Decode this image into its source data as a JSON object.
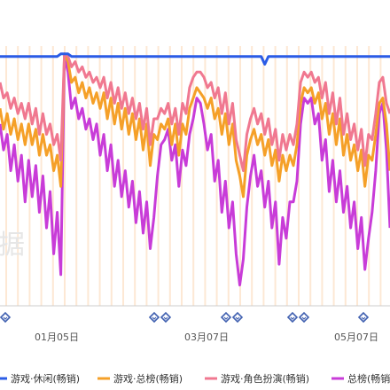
{
  "chart_data": {
    "type": "line",
    "title": "",
    "xlabel": "",
    "ylabel": "",
    "watermark": "据",
    "x_ticks": [
      "01月05日",
      "03月07日",
      "05月07日"
    ],
    "ylim": [
      0,
      100
    ],
    "grid": false,
    "legend_position": "bottom",
    "colors": {
      "casual": "#2b5ce6",
      "total": "#f5a028",
      "rpg": "#f07890",
      "overall": "#c83cd8",
      "event_band": "#fde8d4",
      "marker": "#4060b0"
    },
    "series": [
      {
        "name": "游戏·休闲(畅销)",
        "color": "#2b5ce6",
        "values": [
          96,
          96,
          96,
          96,
          96,
          96,
          96,
          96,
          96,
          96,
          96,
          96,
          96,
          96,
          96,
          96,
          96,
          97,
          97,
          97,
          96,
          96,
          96,
          96,
          96,
          96,
          96,
          96,
          96,
          96,
          96,
          96,
          96,
          96,
          96,
          96,
          96,
          96,
          96,
          96,
          96,
          96,
          96,
          96,
          96,
          96,
          96,
          96,
          96,
          96,
          96,
          96,
          96,
          96,
          96,
          96,
          96,
          96,
          96,
          96,
          96,
          96,
          96,
          96,
          96,
          96,
          96,
          96,
          96,
          96,
          96,
          96,
          96,
          96,
          93,
          96,
          96,
          96,
          96,
          96,
          96,
          96,
          96,
          96,
          96,
          96,
          96,
          96,
          96,
          96,
          96,
          96,
          96,
          96,
          96,
          96,
          96,
          96,
          96,
          96,
          96,
          96,
          96,
          96,
          96,
          96,
          96,
          96,
          96,
          96
        ]
      },
      {
        "name": "游戏·总榜(畅销)",
        "color": "#f5a028",
        "values": [
          76,
          68,
          74,
          66,
          72,
          64,
          70,
          62,
          70,
          62,
          68,
          58,
          66,
          58,
          62,
          52,
          58,
          46,
          97,
          94,
          86,
          88,
          82,
          86,
          80,
          84,
          78,
          82,
          76,
          82,
          72,
          80,
          70,
          78,
          68,
          76,
          66,
          74,
          64,
          72,
          60,
          70,
          54,
          66,
          64,
          70,
          68,
          72,
          62,
          70,
          58,
          70,
          66,
          76,
          80,
          84,
          82,
          80,
          76,
          80,
          72,
          76,
          66,
          74,
          62,
          70,
          56,
          50,
          42,
          58,
          64,
          68,
          62,
          66,
          58,
          64,
          54,
          60,
          48,
          58,
          52,
          58,
          54,
          62,
          78,
          84,
          82,
          84,
          78,
          82,
          72,
          78,
          66,
          74,
          62,
          72,
          58,
          66,
          56,
          62,
          52,
          60,
          46,
          58,
          56,
          66,
          78,
          80,
          70,
          52
        ]
      },
      {
        "name": "游戏·角色扮演(畅销)",
        "color": "#f07890",
        "values": [
          86,
          80,
          82,
          76,
          80,
          74,
          78,
          72,
          78,
          70,
          76,
          66,
          74,
          66,
          70,
          62,
          66,
          56,
          97,
          96,
          92,
          94,
          90,
          92,
          88,
          90,
          86,
          88,
          84,
          88,
          80,
          86,
          78,
          84,
          76,
          82,
          74,
          80,
          72,
          78,
          68,
          76,
          62,
          72,
          72,
          76,
          74,
          78,
          70,
          76,
          66,
          78,
          74,
          84,
          88,
          90,
          90,
          88,
          84,
          86,
          80,
          84,
          74,
          82,
          70,
          78,
          64,
          58,
          52,
          66,
          72,
          76,
          70,
          74,
          66,
          72,
          62,
          68,
          56,
          66,
          60,
          66,
          62,
          70,
          86,
          90,
          88,
          90,
          86,
          88,
          80,
          86,
          74,
          82,
          70,
          80,
          66,
          74,
          64,
          70,
          60,
          68,
          54,
          66,
          64,
          74,
          86,
          88,
          78,
          74
        ]
      },
      {
        "name": "总榜(畅销)",
        "color": "#c83cd8",
        "values": [
          70,
          60,
          66,
          52,
          62,
          48,
          58,
          40,
          56,
          42,
          54,
          36,
          50,
          30,
          44,
          20,
          36,
          12,
          96,
          90,
          76,
          80,
          72,
          76,
          68,
          72,
          64,
          70,
          58,
          66,
          52,
          62,
          46,
          56,
          42,
          52,
          38,
          48,
          32,
          44,
          28,
          40,
          22,
          34,
          50,
          62,
          64,
          68,
          56,
          62,
          46,
          60,
          54,
          66,
          72,
          80,
          78,
          70,
          60,
          66,
          48,
          56,
          36,
          48,
          30,
          40,
          20,
          8,
          18,
          38,
          50,
          58,
          46,
          52,
          38,
          48,
          30,
          40,
          16,
          34,
          26,
          40,
          40,
          48,
          70,
          80,
          78,
          80,
          70,
          74,
          56,
          64,
          44,
          56,
          40,
          52,
          36,
          46,
          30,
          40,
          22,
          34,
          14,
          26,
          36,
          52,
          74,
          78,
          60,
          30
        ]
      }
    ]
  }
}
